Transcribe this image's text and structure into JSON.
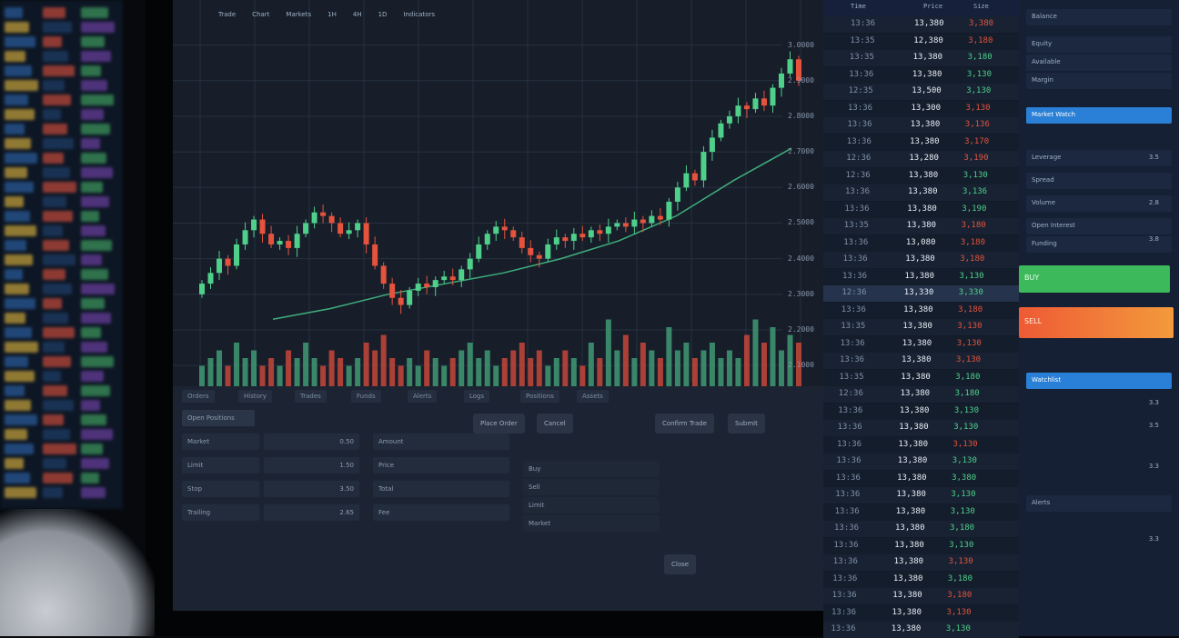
{
  "colors": {
    "up": "#4fd08a",
    "down": "#e5533d",
    "accent": "#2a7fd6",
    "ma": "#3fae7c",
    "buy": "#3cb95a",
    "sell": "#ee6b35"
  },
  "top_bar": [
    "Trade",
    "Chart",
    "Markets",
    "1H",
    "4H",
    "1D",
    "Indicators"
  ],
  "chart_data": {
    "type": "candlestick",
    "y_ticks": [
      "3.0000",
      "2.9000",
      "2.8000",
      "2.7000",
      "2.6000",
      "2.5000",
      "2.4000",
      "2.3000",
      "2.2000",
      "2.1000"
    ],
    "ylim": [
      2.08,
      3.05
    ],
    "grid": true,
    "open_first": 2.3,
    "close": [
      2.33,
      2.36,
      2.4,
      2.38,
      2.44,
      2.48,
      2.51,
      2.47,
      2.44,
      2.45,
      2.43,
      2.47,
      2.5,
      2.53,
      2.52,
      2.5,
      2.47,
      2.48,
      2.5,
      2.44,
      2.38,
      2.33,
      2.29,
      2.27,
      2.31,
      2.33,
      2.32,
      2.34,
      2.35,
      2.34,
      2.37,
      2.4,
      2.44,
      2.47,
      2.49,
      2.48,
      2.46,
      2.43,
      2.41,
      2.4,
      2.44,
      2.46,
      2.45,
      2.47,
      2.46,
      2.48,
      2.47,
      2.49,
      2.5,
      2.49,
      2.51,
      2.5,
      2.52,
      2.51,
      2.56,
      2.6,
      2.64,
      2.62,
      2.7,
      2.74,
      2.78,
      2.8,
      2.83,
      2.82,
      2.85,
      2.83,
      2.88,
      2.92,
      2.96,
      2.9
    ],
    "moving_average": [
      2.23,
      2.26,
      2.3,
      2.33,
      2.36,
      2.4,
      2.45,
      2.52,
      2.62,
      2.71
    ],
    "volume": [
      3,
      4,
      5,
      3,
      6,
      4,
      5,
      3,
      4,
      3,
      5,
      4,
      6,
      4,
      3,
      5,
      4,
      3,
      4,
      6,
      5,
      7,
      4,
      3,
      4,
      3,
      5,
      4,
      3,
      4,
      5,
      6,
      4,
      5,
      3,
      4,
      5,
      6,
      4,
      5,
      3,
      4,
      5,
      4,
      3,
      6,
      4,
      9,
      5,
      7,
      4,
      6,
      5,
      4,
      8,
      5,
      6,
      4,
      5,
      6,
      4,
      5,
      4,
      7,
      9,
      6,
      8,
      5,
      7,
      6
    ]
  },
  "bottom": {
    "tabs": [
      "Orders",
      "History",
      "Trades",
      "Funds",
      "Alerts",
      "Logs",
      "Positions",
      "Assets"
    ],
    "header": "Open Positions",
    "rows": [
      {
        "label": "Market",
        "value": "0.50"
      },
      {
        "label": "Limit",
        "value": "1.50"
      },
      {
        "label": "Stop",
        "value": "3.50"
      },
      {
        "label": "Trailing",
        "value": "2.65"
      }
    ],
    "form_labels": [
      "Amount",
      "Price",
      "Total",
      "Fee"
    ],
    "buttons": [
      "Place Order",
      "Cancel",
      "Confirm Trade",
      "Submit",
      "Close"
    ],
    "badges": [
      "Buy",
      "Sell",
      "Limit",
      "Market"
    ]
  },
  "order_book": {
    "header": [
      "Time",
      "Price",
      "Size"
    ],
    "rows": [
      [
        "13:36",
        "13,380",
        "3,380",
        "down"
      ],
      [
        "13:35",
        "12,380",
        "3,180",
        "down"
      ],
      [
        "13:35",
        "13,380",
        "3,180",
        "up"
      ],
      [
        "13:36",
        "13,380",
        "3,130",
        "up"
      ],
      [
        "12:35",
        "13,500",
        "3,130",
        "up"
      ],
      [
        "13:36",
        "13,300",
        "3,130",
        "down"
      ],
      [
        "13:36",
        "13,380",
        "3,136",
        "down"
      ],
      [
        "13:36",
        "13,380",
        "3,170",
        "down"
      ],
      [
        "12:36",
        "13,280",
        "3,190",
        "down"
      ],
      [
        "12:36",
        "13,380",
        "3,130",
        "up"
      ],
      [
        "13:36",
        "13,380",
        "3,136",
        "up"
      ],
      [
        "13:36",
        "13,380",
        "3,190",
        "up"
      ],
      [
        "13:35",
        "13,380",
        "3,180",
        "down"
      ],
      [
        "13:36",
        "13,080",
        "3,180",
        "down"
      ],
      [
        "13:36",
        "13,380",
        "3,180",
        "down"
      ],
      [
        "13:36",
        "13,380",
        "3,130",
        "up"
      ],
      [
        "12:36",
        "13,330",
        "3,330",
        "up"
      ],
      [
        "13:36",
        "13,380",
        "3,180",
        "down"
      ],
      [
        "13:35",
        "13,380",
        "3,130",
        "down"
      ],
      [
        "13:36",
        "13,380",
        "3,130",
        "down"
      ],
      [
        "13:36",
        "13,380",
        "3,130",
        "down"
      ],
      [
        "13:35",
        "13,380",
        "3,180",
        "up"
      ],
      [
        "12:36",
        "13,380",
        "3,180",
        "up"
      ],
      [
        "13:36",
        "13,380",
        "3,130",
        "up"
      ],
      [
        "13:36",
        "13,380",
        "3,130",
        "up"
      ],
      [
        "13:36",
        "13,380",
        "3,130",
        "down"
      ],
      [
        "13:36",
        "13,380",
        "3,130",
        "up"
      ],
      [
        "13:36",
        "13,380",
        "3,380",
        "up"
      ],
      [
        "13:36",
        "13,380",
        "3,130",
        "up"
      ],
      [
        "13:36",
        "13,380",
        "3,130",
        "up"
      ],
      [
        "13:36",
        "13,380",
        "3,180",
        "up"
      ],
      [
        "13:36",
        "13,380",
        "3,130",
        "up"
      ],
      [
        "13:36",
        "13,380",
        "3,130",
        "down"
      ],
      [
        "13:36",
        "13,380",
        "3,180",
        "up"
      ],
      [
        "13:36",
        "13,380",
        "3,180",
        "down"
      ],
      [
        "13:36",
        "13,380",
        "3,130",
        "down"
      ],
      [
        "13:36",
        "13,380",
        "3,130",
        "up"
      ]
    ]
  },
  "right_panel": {
    "items": [
      "Balance",
      "Equity",
      "Available",
      "Margin",
      "Market Watch",
      "Leverage",
      "Spread",
      "Volume",
      "Open Interest",
      "Funding",
      "Watchlist",
      "Alerts"
    ],
    "buy_label": "BUY",
    "sell_label": "SELL",
    "values": [
      "3.5",
      "2.8",
      "3.8",
      "3.3",
      "3.5",
      "3.3",
      "3.3"
    ]
  }
}
